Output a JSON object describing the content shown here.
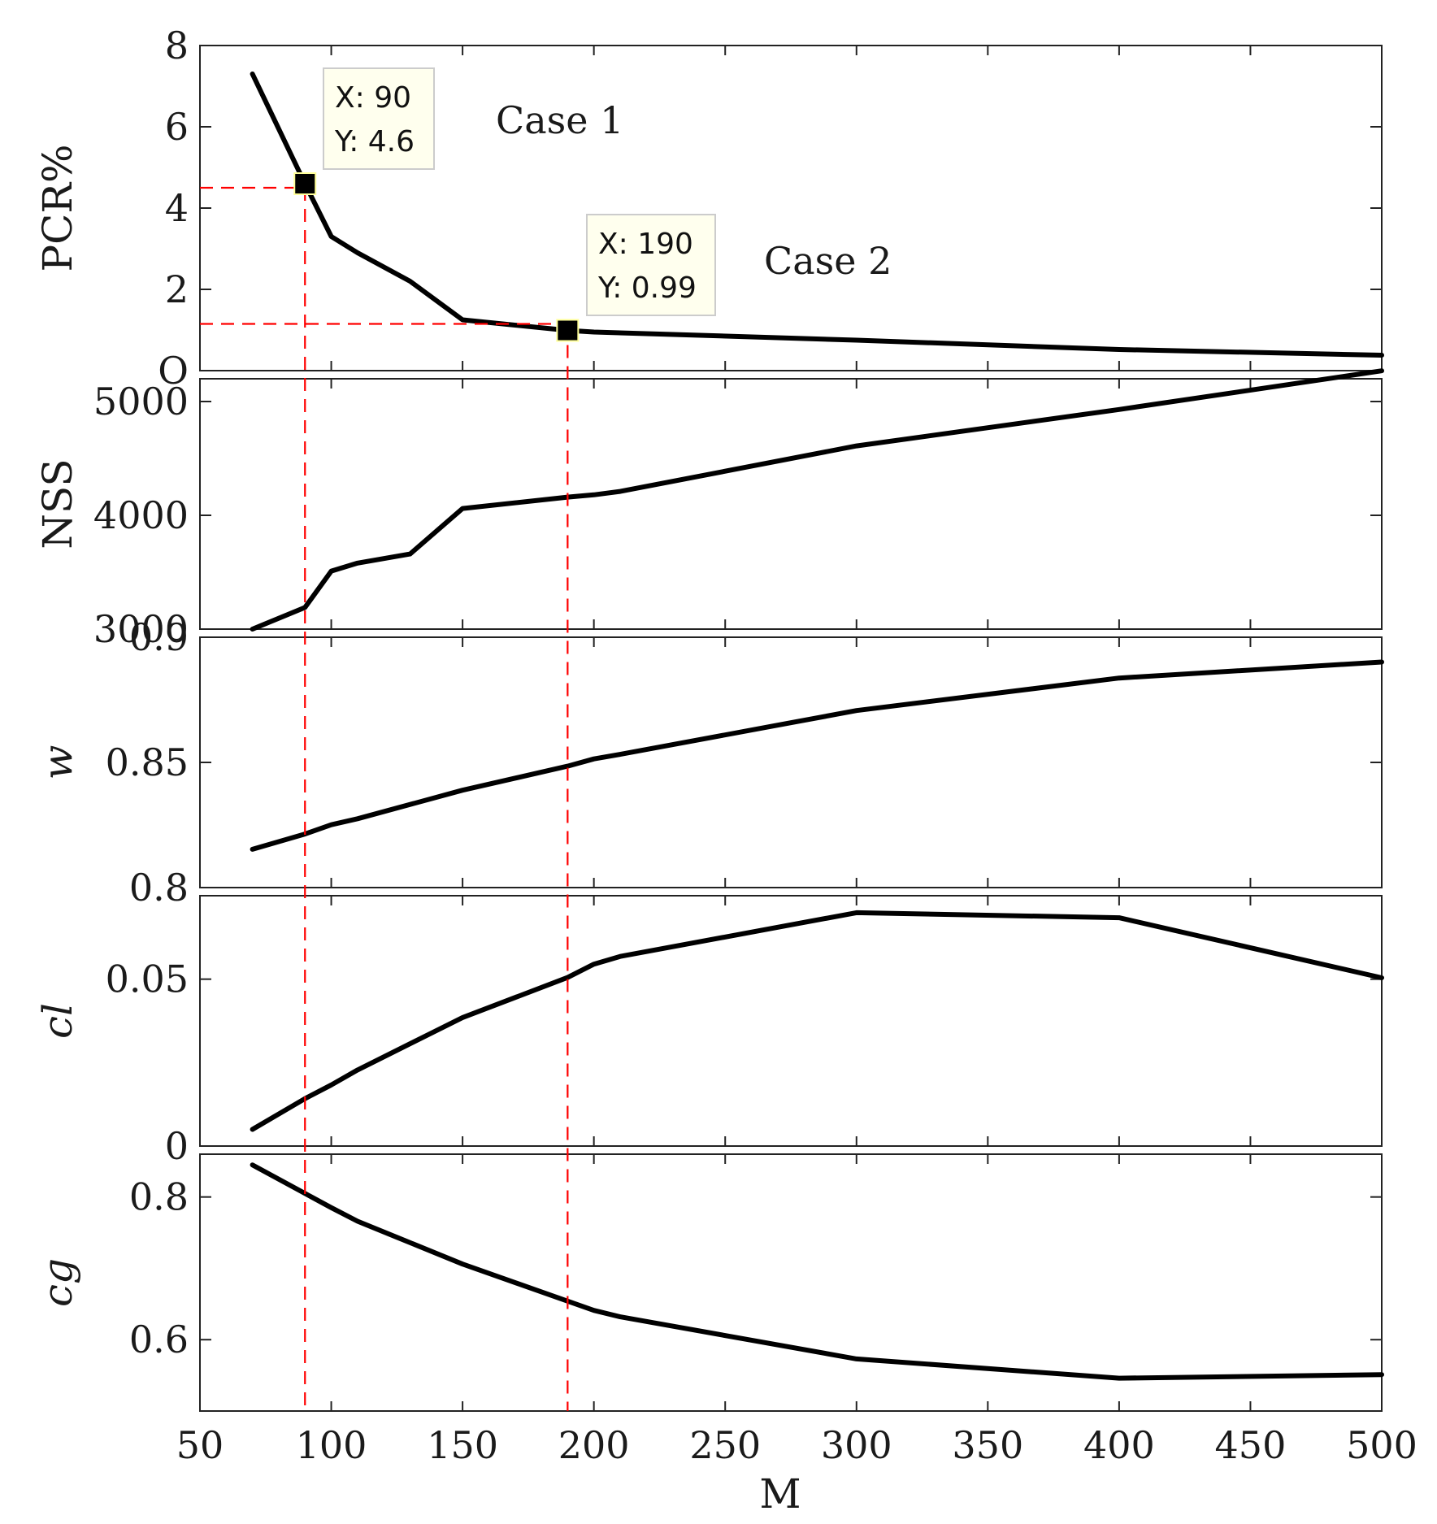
{
  "chart_data": {
    "type": "line",
    "xlabel": "M",
    "x_ticks": [
      "50",
      "100",
      "150",
      "200",
      "250",
      "300",
      "350",
      "400",
      "450",
      "500"
    ],
    "xlim": [
      50,
      500
    ],
    "subplots": [
      {
        "id": "pcr",
        "ylabel": "PCR%",
        "ylim": [
          0,
          8
        ],
        "y_ticks": [
          0,
          2,
          4,
          6,
          8
        ],
        "y_tick_labels": [
          "O",
          "2",
          "4",
          "6",
          "8"
        ],
        "x": [
          70,
          90,
          100,
          110,
          130,
          150,
          190,
          200,
          300,
          400,
          500
        ],
        "y": [
          7.3,
          4.6,
          3.3,
          2.9,
          2.2,
          1.25,
          0.99,
          0.95,
          0.75,
          0.52,
          0.38
        ]
      },
      {
        "id": "nss",
        "ylabel": "NSS",
        "ylim": [
          3000,
          5200
        ],
        "y_ticks": [
          3000,
          4000,
          5000
        ],
        "y_tick_labels": [
          "3000",
          "4000",
          "5000"
        ],
        "x": [
          70,
          90,
          100,
          110,
          130,
          150,
          190,
          200,
          210,
          300,
          400,
          500
        ],
        "y": [
          3000,
          3190,
          3510,
          3580,
          3660,
          4060,
          4160,
          4180,
          4210,
          4610,
          4930,
          5270
        ]
      },
      {
        "id": "w",
        "ylabel": "w",
        "ylabel_italic": true,
        "ylim": [
          0.8,
          0.9
        ],
        "y_ticks": [
          0.8,
          0.85,
          0.9
        ],
        "y_tick_labels": [
          "0.8",
          "0.85",
          "0.9"
        ],
        "x": [
          70,
          90,
          100,
          110,
          150,
          190,
          200,
          210,
          300,
          400,
          500
        ],
        "y": [
          0.8153,
          0.8214,
          0.8251,
          0.8275,
          0.8389,
          0.8485,
          0.8514,
          0.8532,
          0.8707,
          0.8837,
          0.8901
        ]
      },
      {
        "id": "cl",
        "ylabel": "cl",
        "ylabel_italic": true,
        "ylim": [
          0,
          0.075
        ],
        "y_ticks": [
          0,
          0.05
        ],
        "y_tick_labels": [
          "0",
          "0.05"
        ],
        "x": [
          70,
          90,
          100,
          110,
          150,
          190,
          200,
          210,
          300,
          400,
          500
        ],
        "y": [
          0.005,
          0.0142,
          0.0183,
          0.0228,
          0.0385,
          0.0505,
          0.0545,
          0.0568,
          0.0699,
          0.0684,
          0.0504
        ]
      },
      {
        "id": "cg",
        "ylabel": "cg",
        "ylabel_italic": true,
        "ylim": [
          0.5,
          0.86
        ],
        "y_ticks": [
          0.6,
          0.8
        ],
        "y_tick_labels": [
          "0.6",
          "0.8"
        ],
        "x": [
          70,
          90,
          100,
          110,
          150,
          190,
          200,
          210,
          300,
          400,
          500
        ],
        "y": [
          0.845,
          0.805,
          0.785,
          0.766,
          0.706,
          0.654,
          0.641,
          0.632,
          0.573,
          0.546,
          0.551
        ]
      }
    ],
    "stacked_top_tick_label": "3000",
    "stacked_overlap_label": "0.9",
    "top_label_cl": "0.8",
    "annotations": [
      "Case 1",
      "Case 2"
    ],
    "datatips": [
      {
        "x": 90,
        "y": 4.6,
        "x_text": "X: 90",
        "y_text": "Y: 4.6"
      },
      {
        "x": 190,
        "y": 0.99,
        "x_text": "X: 190",
        "y_text": "Y: 0.99"
      }
    ],
    "guides": [
      {
        "x": 90,
        "y": 4.5
      },
      {
        "x": 190,
        "y": 1.15
      }
    ],
    "colors": {
      "series": "#000000",
      "guide": "#ff0000",
      "tip_bg": "#ffffee",
      "tip_border": "#cccccc"
    }
  }
}
